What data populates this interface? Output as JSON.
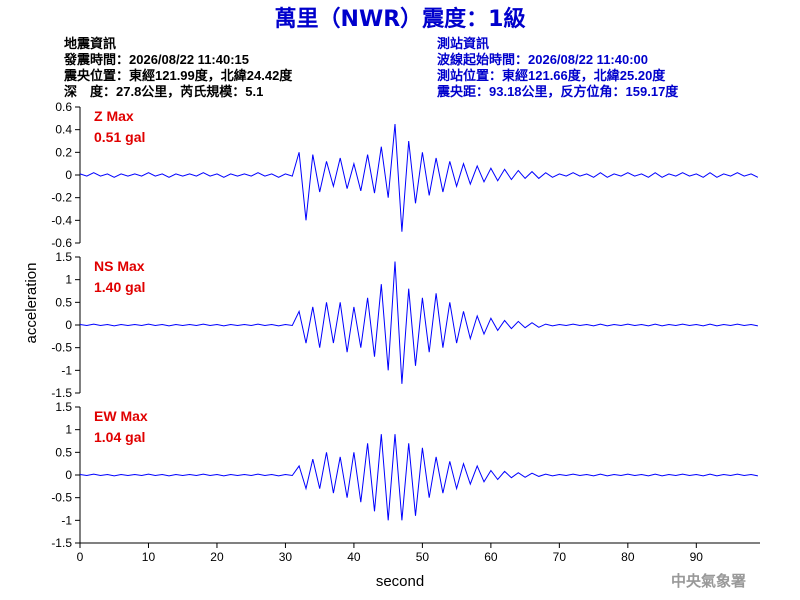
{
  "header": {
    "title": "萬里（NWR）震度：1級",
    "left": [
      "地震資訊",
      "發震時間：2026/08/22 11:40:15",
      "震央位置：東經121.99度，北緯24.42度",
      "深　度：27.8公里，芮氏規模：5.1"
    ],
    "right": [
      "測站資訊",
      "波線起始時間：2026/08/22 11:40:00",
      "測站位置：東經121.66度，北緯25.20度",
      "震央距：93.18公里，反方位角：159.17度"
    ]
  },
  "y_axis_label": "acceleration",
  "x_axis_label": "second",
  "footer": "中央氣象署",
  "chart_data": [
    {
      "type": "line",
      "label": "Z Max",
      "annotation": "0.51 gal",
      "color": "#0000ff",
      "xlim": [
        0,
        99.3
      ],
      "ylim": [
        -0.6,
        0.6
      ],
      "yticks": [
        0.6,
        0.4,
        0.2,
        0,
        -0.2,
        -0.4,
        -0.6
      ],
      "x": [
        0,
        1,
        2,
        3,
        4,
        5,
        6,
        7,
        8,
        9,
        10,
        11,
        12,
        13,
        14,
        15,
        16,
        17,
        18,
        19,
        20,
        21,
        22,
        23,
        24,
        25,
        26,
        27,
        28,
        29,
        30,
        31,
        32,
        33,
        34,
        35,
        36,
        37,
        38,
        39,
        40,
        41,
        42,
        43,
        44,
        45,
        46,
        47,
        48,
        49,
        50,
        51,
        52,
        53,
        54,
        55,
        56,
        57,
        58,
        59,
        60,
        61,
        62,
        63,
        64,
        65,
        66,
        67,
        68,
        69,
        70,
        71,
        72,
        73,
        74,
        75,
        76,
        77,
        78,
        79,
        80,
        81,
        82,
        83,
        84,
        85,
        86,
        87,
        88,
        89,
        90,
        91,
        92,
        93,
        94,
        95,
        96,
        97,
        98,
        99
      ],
      "values": [
        0.01,
        -0.01,
        0.02,
        -0.01,
        0.01,
        -0.02,
        0.01,
        -0.01,
        0.01,
        -0.01,
        0.02,
        -0.01,
        0.01,
        -0.02,
        0.01,
        -0.01,
        0.01,
        -0.01,
        0.02,
        -0.01,
        0.01,
        -0.02,
        0.01,
        -0.01,
        0.01,
        -0.01,
        0.02,
        -0.01,
        0.01,
        -0.02,
        0.01,
        -0.01,
        0.2,
        -0.4,
        0.18,
        -0.15,
        0.12,
        -0.1,
        0.15,
        -0.12,
        0.1,
        -0.14,
        0.18,
        -0.16,
        0.25,
        -0.2,
        0.45,
        -0.5,
        0.3,
        -0.25,
        0.2,
        -0.18,
        0.15,
        -0.15,
        0.12,
        -0.1,
        0.1,
        -0.08,
        0.08,
        -0.06,
        0.06,
        -0.05,
        0.05,
        -0.04,
        0.04,
        -0.03,
        0.03,
        -0.03,
        0.02,
        -0.02,
        0.01,
        -0.01,
        0.02,
        -0.01,
        0.01,
        -0.02,
        0.02,
        -0.02,
        0.01,
        -0.01,
        0.02,
        -0.01,
        0.01,
        -0.02,
        0.02,
        -0.02,
        0.01,
        -0.01,
        0.02,
        -0.01,
        0.01,
        -0.02,
        0.02,
        -0.02,
        0.01,
        -0.01,
        0.02,
        -0.01,
        0.01,
        -0.02
      ]
    },
    {
      "type": "line",
      "label": "NS Max",
      "annotation": "1.40 gal",
      "color": "#0000ff",
      "xlim": [
        0,
        99.3
      ],
      "ylim": [
        -1.5,
        1.5
      ],
      "yticks": [
        1.5,
        1,
        0.5,
        0,
        -0.5,
        -1,
        -1.5
      ],
      "x": [
        0,
        1,
        2,
        3,
        4,
        5,
        6,
        7,
        8,
        9,
        10,
        11,
        12,
        13,
        14,
        15,
        16,
        17,
        18,
        19,
        20,
        21,
        22,
        23,
        24,
        25,
        26,
        27,
        28,
        29,
        30,
        31,
        32,
        33,
        34,
        35,
        36,
        37,
        38,
        39,
        40,
        41,
        42,
        43,
        44,
        45,
        46,
        47,
        48,
        49,
        50,
        51,
        52,
        53,
        54,
        55,
        56,
        57,
        58,
        59,
        60,
        61,
        62,
        63,
        64,
        65,
        66,
        67,
        68,
        69,
        70,
        71,
        72,
        73,
        74,
        75,
        76,
        77,
        78,
        79,
        80,
        81,
        82,
        83,
        84,
        85,
        86,
        87,
        88,
        89,
        90,
        91,
        92,
        93,
        94,
        95,
        96,
        97,
        98,
        99
      ],
      "values": [
        0.01,
        -0.01,
        0.02,
        -0.01,
        0.01,
        -0.02,
        0.01,
        -0.01,
        0.01,
        -0.01,
        0.02,
        -0.01,
        0.01,
        -0.02,
        0.01,
        -0.01,
        0.01,
        -0.01,
        0.02,
        -0.01,
        0.01,
        -0.02,
        0.01,
        -0.01,
        0.01,
        -0.01,
        0.02,
        -0.01,
        0.01,
        -0.02,
        0.01,
        -0.01,
        0.3,
        -0.4,
        0.4,
        -0.5,
        0.5,
        -0.4,
        0.5,
        -0.6,
        0.4,
        -0.5,
        0.6,
        -0.7,
        0.9,
        -1.0,
        1.4,
        -1.3,
        0.8,
        -0.9,
        0.6,
        -0.6,
        0.7,
        -0.5,
        0.5,
        -0.4,
        0.3,
        -0.3,
        0.2,
        -0.2,
        0.15,
        -0.12,
        0.1,
        -0.08,
        0.08,
        -0.06,
        0.05,
        -0.05,
        0.02,
        -0.02,
        0.01,
        -0.01,
        0.02,
        -0.01,
        0.01,
        -0.02,
        0.02,
        -0.02,
        0.01,
        -0.01,
        0.02,
        -0.01,
        0.01,
        -0.02,
        0.02,
        -0.02,
        0.01,
        -0.01,
        0.02,
        -0.01,
        0.01,
        -0.02,
        0.02,
        -0.02,
        0.01,
        -0.01,
        0.02,
        -0.01,
        0.01,
        -0.02
      ]
    },
    {
      "type": "line",
      "label": "EW Max",
      "annotation": "1.04 gal",
      "color": "#0000ff",
      "xlim": [
        0,
        99.3
      ],
      "ylim": [
        -1.5,
        1.5
      ],
      "yticks": [
        1.5,
        1,
        0.5,
        0,
        -0.5,
        -1,
        -1.5
      ],
      "xticks": [
        0,
        10,
        20,
        30,
        40,
        50,
        60,
        70,
        80,
        90
      ],
      "x": [
        0,
        1,
        2,
        3,
        4,
        5,
        6,
        7,
        8,
        9,
        10,
        11,
        12,
        13,
        14,
        15,
        16,
        17,
        18,
        19,
        20,
        21,
        22,
        23,
        24,
        25,
        26,
        27,
        28,
        29,
        30,
        31,
        32,
        33,
        34,
        35,
        36,
        37,
        38,
        39,
        40,
        41,
        42,
        43,
        44,
        45,
        46,
        47,
        48,
        49,
        50,
        51,
        52,
        53,
        54,
        55,
        56,
        57,
        58,
        59,
        60,
        61,
        62,
        63,
        64,
        65,
        66,
        67,
        68,
        69,
        70,
        71,
        72,
        73,
        74,
        75,
        76,
        77,
        78,
        79,
        80,
        81,
        82,
        83,
        84,
        85,
        86,
        87,
        88,
        89,
        90,
        91,
        92,
        93,
        94,
        95,
        96,
        97,
        98,
        99
      ],
      "values": [
        0.01,
        -0.01,
        0.02,
        -0.01,
        0.01,
        -0.02,
        0.01,
        -0.01,
        0.01,
        -0.01,
        0.02,
        -0.01,
        0.01,
        -0.02,
        0.01,
        -0.01,
        0.01,
        -0.01,
        0.02,
        -0.01,
        0.01,
        -0.02,
        0.01,
        -0.01,
        0.01,
        -0.01,
        0.02,
        -0.01,
        0.01,
        -0.02,
        0.01,
        -0.01,
        0.2,
        -0.3,
        0.35,
        -0.3,
        0.5,
        -0.4,
        0.4,
        -0.5,
        0.5,
        -0.6,
        0.7,
        -0.8,
        0.9,
        -1.0,
        0.9,
        -1.0,
        0.7,
        -0.9,
        0.6,
        -0.5,
        0.4,
        -0.4,
        0.3,
        -0.3,
        0.25,
        -0.2,
        0.2,
        -0.15,
        0.1,
        -0.1,
        0.08,
        -0.06,
        0.05,
        -0.05,
        0.04,
        -0.03,
        0.02,
        -0.02,
        0.01,
        -0.01,
        0.02,
        -0.01,
        0.01,
        -0.02,
        0.02,
        -0.02,
        0.01,
        -0.01,
        0.02,
        -0.01,
        0.01,
        -0.02,
        0.02,
        -0.02,
        0.01,
        -0.01,
        0.02,
        -0.01,
        0.01,
        -0.02,
        0.02,
        -0.02,
        0.01,
        -0.01,
        0.02,
        -0.01,
        0.01,
        -0.02
      ]
    }
  ]
}
